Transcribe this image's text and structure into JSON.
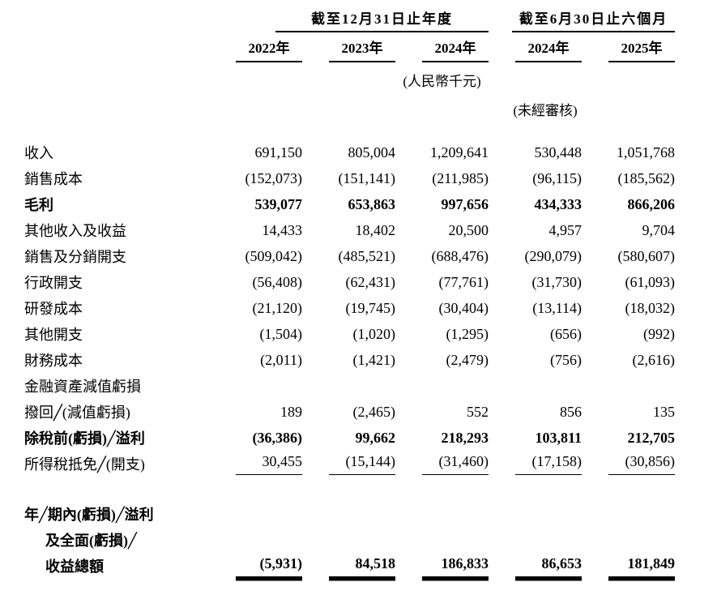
{
  "colors": {
    "text": "#000000",
    "background": "#ffffff"
  },
  "header": {
    "group1": "截至12月31日止年度",
    "group2": "截至6月30日止六個月",
    "years": [
      "2022年",
      "2023年",
      "2024年",
      "2024年",
      "2025年"
    ],
    "note_currency": "(人民幣千元)",
    "note_unaudited": "(未經審核)"
  },
  "rows": [
    {
      "label": "收入",
      "values": [
        "691,150",
        "805,004",
        "1,209,641",
        "530,448",
        "1,051,768"
      ]
    },
    {
      "label": "銷售成本",
      "values": [
        "(152,073)",
        "(151,141)",
        "(211,985)",
        "(96,115)",
        "(185,562)"
      ]
    },
    {
      "label": "毛利",
      "bold": true,
      "values": [
        "539,077",
        "653,863",
        "997,656",
        "434,333",
        "866,206"
      ]
    },
    {
      "label": "其他收入及收益",
      "values": [
        "14,433",
        "18,402",
        "20,500",
        "4,957",
        "9,704"
      ]
    },
    {
      "label": "銷售及分銷開支",
      "values": [
        "(509,042)",
        "(485,521)",
        "(688,476)",
        "(290,079)",
        "(580,607)"
      ]
    },
    {
      "label": "行政開支",
      "values": [
        "(56,408)",
        "(62,431)",
        "(77,761)",
        "(31,730)",
        "(61,093)"
      ]
    },
    {
      "label": "研發成本",
      "values": [
        "(21,120)",
        "(19,745)",
        "(30,404)",
        "(13,114)",
        "(18,032)"
      ]
    },
    {
      "label": "其他開支",
      "values": [
        "(1,504)",
        "(1,020)",
        "(1,295)",
        "(656)",
        "(992)"
      ]
    },
    {
      "label": "財務成本",
      "values": [
        "(2,011)",
        "(1,421)",
        "(2,479)",
        "(756)",
        "(2,616)"
      ]
    },
    {
      "label": "金融資產減值虧損",
      "values": [
        "",
        "",
        "",
        "",
        ""
      ]
    },
    {
      "label": "撥回╱(減值虧損)",
      "values": [
        "189",
        "(2,465)",
        "552",
        "856",
        "135"
      ]
    },
    {
      "label": "除稅前(虧損)╱溢利",
      "bold": true,
      "values": [
        "(36,386)",
        "99,662",
        "218,293",
        "103,811",
        "212,705"
      ]
    },
    {
      "label": "所得稅抵免╱(開支)",
      "underline": "single",
      "values": [
        "30,455",
        "(15,144)",
        "(31,460)",
        "(17,158)",
        "(30,856)"
      ]
    },
    {
      "spacer": true
    },
    {
      "label": "年╱期內(虧損)╱溢利",
      "bold": true,
      "values": [
        "",
        "",
        "",
        "",
        ""
      ]
    },
    {
      "label": "及全面(虧損)╱",
      "bold": true,
      "indent": true,
      "values": [
        "",
        "",
        "",
        "",
        ""
      ]
    },
    {
      "label": "收益總額",
      "bold": true,
      "indent": true,
      "underline": "double",
      "values": [
        "(5,931)",
        "84,518",
        "186,833",
        "86,653",
        "181,849"
      ]
    }
  ]
}
